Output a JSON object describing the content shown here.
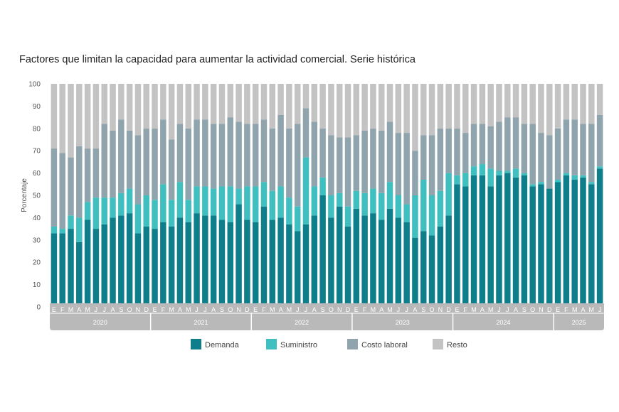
{
  "chart_data": {
    "type": "bar",
    "stacked": true,
    "title": "Factores que limitan la capacidad para aumentar la actividad comercial. Serie histórica",
    "ylabel": "Porcentaje",
    "ylim": [
      0,
      100
    ],
    "yticks": [
      0,
      10,
      20,
      30,
      40,
      50,
      60,
      70,
      80,
      90,
      100
    ],
    "month_labels": [
      "E",
      "F",
      "M",
      "A",
      "M",
      "J",
      "J",
      "A",
      "S",
      "O",
      "N",
      "D",
      "E",
      "F",
      "M",
      "A",
      "M",
      "J",
      "J",
      "A",
      "S",
      "O",
      "N",
      "D",
      "E",
      "F",
      "M",
      "A",
      "M",
      "J",
      "J",
      "A",
      "S",
      "O",
      "N",
      "D",
      "E",
      "F",
      "M",
      "A",
      "M",
      "J",
      "J",
      "A",
      "S",
      "O",
      "N",
      "D",
      "E",
      "F",
      "M",
      "A",
      "M",
      "J",
      "J",
      "A",
      "S",
      "O",
      "N",
      "D",
      "E",
      "F",
      "M",
      "A",
      "M",
      "J"
    ],
    "years": [
      {
        "label": "2020",
        "months": 12
      },
      {
        "label": "2021",
        "months": 12
      },
      {
        "label": "2022",
        "months": 12
      },
      {
        "label": "2023",
        "months": 12
      },
      {
        "label": "2024",
        "months": 12
      },
      {
        "label": "2025",
        "months": 6
      }
    ],
    "legend_position": "bottom",
    "series": [
      {
        "name": "Demanda",
        "color": "#0e7f8a",
        "values": [
          33,
          33,
          35,
          29,
          39,
          35,
          37,
          40,
          41,
          42,
          33,
          36,
          35,
          38,
          36,
          40,
          38,
          42,
          41,
          41,
          39,
          38,
          46,
          39,
          38,
          45,
          39,
          40,
          37,
          34,
          37,
          41,
          50,
          40,
          45,
          36,
          44,
          41,
          42,
          39,
          44,
          40,
          38,
          31,
          34,
          32,
          36,
          41,
          55,
          54,
          59,
          59,
          54,
          59,
          60,
          58,
          59,
          54,
          55,
          53,
          56,
          59,
          57,
          58,
          55,
          62
        ]
      },
      {
        "name": "Suministro",
        "color": "#3fbfbf",
        "values": [
          3,
          2,
          6,
          11,
          8,
          14,
          12,
          9,
          10,
          11,
          13,
          14,
          13,
          17,
          12,
          16,
          10,
          12,
          13,
          12,
          15,
          16,
          7,
          15,
          16,
          11,
          13,
          14,
          12,
          11,
          30,
          13,
          8,
          10,
          6,
          9,
          8,
          10,
          11,
          12,
          12,
          10,
          8,
          19,
          23,
          18,
          16,
          19,
          4,
          6,
          4,
          5,
          8,
          2,
          1,
          4,
          1,
          1,
          1,
          0,
          1,
          1,
          2,
          1,
          1,
          1
        ]
      },
      {
        "name": "Costo laboral",
        "color": "#8fa4ad",
        "values": [
          35,
          34,
          26,
          32,
          24,
          22,
          33,
          30,
          33,
          26,
          31,
          30,
          32,
          29,
          27,
          26,
          32,
          30,
          30,
          29,
          28,
          31,
          30,
          28,
          28,
          28,
          28,
          32,
          31,
          37,
          22,
          29,
          22,
          27,
          25,
          31,
          25,
          28,
          27,
          28,
          27,
          28,
          32,
          20,
          20,
          27,
          28,
          20,
          21,
          18,
          19,
          18,
          19,
          22,
          24,
          23,
          22,
          27,
          22,
          24,
          23,
          24,
          25,
          23,
          26,
          23
        ]
      },
      {
        "name": "Resto",
        "color": "#c3c3c3",
        "values": [
          29,
          31,
          33,
          28,
          29,
          29,
          18,
          21,
          16,
          21,
          23,
          20,
          20,
          16,
          25,
          18,
          20,
          16,
          16,
          18,
          18,
          15,
          17,
          18,
          18,
          16,
          20,
          14,
          20,
          18,
          11,
          17,
          20,
          23,
          24,
          24,
          23,
          21,
          20,
          21,
          17,
          22,
          22,
          30,
          23,
          23,
          20,
          20,
          20,
          22,
          18,
          18,
          19,
          17,
          15,
          15,
          18,
          18,
          22,
          23,
          20,
          16,
          16,
          18,
          18,
          14
        ]
      }
    ]
  }
}
